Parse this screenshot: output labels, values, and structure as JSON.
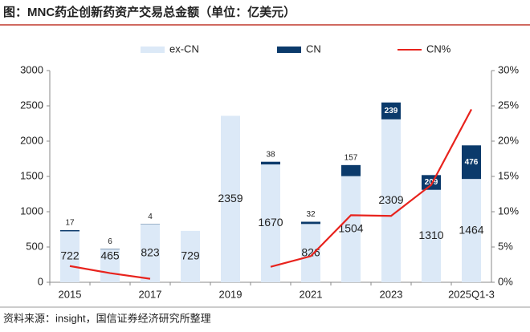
{
  "title": "图：MNC药企创新药资产交易总金额（单位：亿美元）",
  "source": "资料来源：insight，国信证券经济研究所整理",
  "chart_data": {
    "type": "bar",
    "categories": [
      "2015",
      null,
      "2017",
      null,
      "2019",
      null,
      "2021",
      null,
      "2023",
      null,
      "2025Q1-3"
    ],
    "series": [
      {
        "name": "ex-CN",
        "type": "bar",
        "color": "#dce9f7",
        "values": [
          722,
          465,
          823,
          729,
          2359,
          1670,
          826,
          1504,
          2309,
          1310,
          1464
        ]
      },
      {
        "name": "CN",
        "type": "bar",
        "color": "#0b3a6b",
        "values": [
          17,
          6,
          4,
          null,
          null,
          38,
          32,
          157,
          239,
          209,
          476
        ]
      },
      {
        "name": "CN%",
        "type": "line",
        "axis": "y2",
        "color": "#e8231d",
        "values": [
          2.3,
          1.3,
          0.5,
          null,
          null,
          2.2,
          3.7,
          9.5,
          9.4,
          13.8,
          24.5
        ]
      }
    ],
    "ylim": [
      0,
      3000
    ],
    "yticks": [
      0,
      500,
      1000,
      1500,
      2000,
      2500,
      3000
    ],
    "y2lim": [
      0,
      30
    ],
    "y2ticks": [
      {
        "value": 0,
        "label": "0%"
      },
      {
        "value": 5,
        "label": "5%"
      },
      {
        "value": 10,
        "label": "10%"
      },
      {
        "value": 15,
        "label": "15%"
      },
      {
        "value": 20,
        "label": "20%"
      },
      {
        "value": 25,
        "label": "25%"
      },
      {
        "value": 30,
        "label": "30%"
      }
    ],
    "legend": "top",
    "grid": false
  }
}
